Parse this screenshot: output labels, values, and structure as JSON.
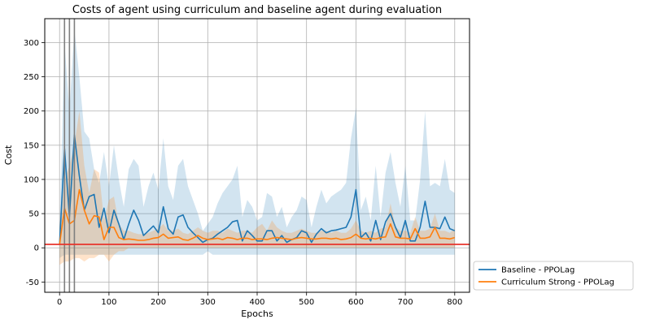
{
  "chart_data": {
    "type": "line",
    "title": "Costs of agent using curriculum and baseline agent during evaluation",
    "xlabel": "Epochs",
    "ylabel": "Cost",
    "xlim": [
      -30,
      830
    ],
    "ylim": [
      -65,
      335
    ],
    "xticks": [
      0,
      100,
      200,
      300,
      400,
      500,
      600,
      700,
      800
    ],
    "yticks": [
      -50,
      0,
      50,
      100,
      150,
      200,
      250,
      300
    ],
    "grid": true,
    "legend_position": "outside-bottom-right",
    "threshold": {
      "y": 5,
      "color": "#e8352b"
    },
    "vertical_lines": {
      "x": [
        10,
        20,
        30
      ],
      "color": "#7f7f7f"
    },
    "x": [
      0,
      10,
      20,
      30,
      40,
      50,
      60,
      70,
      80,
      90,
      100,
      110,
      120,
      130,
      140,
      150,
      160,
      170,
      180,
      190,
      200,
      210,
      220,
      230,
      240,
      250,
      260,
      270,
      280,
      290,
      300,
      310,
      320,
      330,
      340,
      350,
      360,
      370,
      380,
      390,
      400,
      410,
      420,
      430,
      440,
      450,
      460,
      470,
      480,
      490,
      500,
      510,
      520,
      530,
      540,
      550,
      560,
      570,
      580,
      590,
      600,
      610,
      620,
      630,
      640,
      650,
      660,
      670,
      680,
      690,
      700,
      710,
      720,
      730,
      740,
      750,
      760,
      770,
      780,
      790,
      800
    ],
    "series": [
      {
        "name": "Baseline - PPOLag",
        "color": "#1f77b4",
        "values": [
          5,
          145,
          45,
          165,
          105,
          55,
          75,
          78,
          30,
          58,
          22,
          55,
          35,
          12,
          35,
          55,
          40,
          18,
          25,
          32,
          22,
          60,
          28,
          20,
          45,
          48,
          30,
          22,
          15,
          8,
          12,
          14,
          20,
          25,
          30,
          38,
          40,
          10,
          25,
          18,
          10,
          10,
          25,
          25,
          10,
          18,
          8,
          12,
          15,
          25,
          22,
          8,
          20,
          28,
          22,
          25,
          26,
          28,
          30,
          45,
          85,
          15,
          22,
          10,
          40,
          12,
          38,
          50,
          30,
          15,
          40,
          10,
          10,
          30,
          68,
          30,
          30,
          28,
          45,
          28,
          25
        ],
        "band_low": [
          -15,
          -10,
          -10,
          -10,
          -10,
          -10,
          -10,
          -10,
          -10,
          -10,
          -10,
          -10,
          -10,
          -10,
          -10,
          -10,
          -10,
          -10,
          -10,
          -10,
          -10,
          -10,
          -10,
          -10,
          -10,
          -10,
          -10,
          -10,
          -10,
          -10,
          -5,
          -10,
          -10,
          -10,
          -10,
          -10,
          -10,
          -10,
          -10,
          -10,
          -10,
          -10,
          -10,
          -10,
          -10,
          -10,
          -10,
          -10,
          -10,
          -10,
          -10,
          -10,
          -10,
          -10,
          -10,
          -10,
          -10,
          -10,
          -10,
          -10,
          -10,
          -10,
          -10,
          -10,
          -10,
          -10,
          -10,
          -10,
          -10,
          -10,
          -10,
          -10,
          -10,
          -10,
          -10,
          -10,
          -10,
          -10,
          -10,
          -10,
          -10
        ],
        "band_high": [
          30,
          300,
          200,
          320,
          250,
          170,
          160,
          115,
          95,
          140,
          90,
          150,
          100,
          60,
          115,
          130,
          120,
          60,
          90,
          110,
          85,
          160,
          90,
          70,
          120,
          130,
          90,
          70,
          50,
          25,
          35,
          45,
          65,
          80,
          90,
          100,
          120,
          45,
          70,
          60,
          40,
          45,
          80,
          75,
          45,
          60,
          30,
          45,
          55,
          75,
          70,
          30,
          60,
          85,
          65,
          75,
          80,
          85,
          95,
          160,
          205,
          55,
          75,
          40,
          120,
          45,
          110,
          140,
          95,
          60,
          120,
          40,
          40,
          100,
          200,
          90,
          95,
          90,
          130,
          85,
          80
        ]
      },
      {
        "name": "Curriculum Strong - PPOLag",
        "color": "#ff7f0e",
        "values": [
          5,
          58,
          35,
          40,
          85,
          55,
          35,
          47,
          45,
          12,
          30,
          30,
          15,
          12,
          13,
          12,
          11,
          11,
          12,
          14,
          15,
          20,
          14,
          15,
          16,
          12,
          11,
          14,
          18,
          14,
          12,
          13,
          14,
          12,
          15,
          14,
          12,
          14,
          14,
          12,
          13,
          13,
          12,
          14,
          15,
          14,
          13,
          12,
          14,
          15,
          14,
          13,
          13,
          14,
          14,
          13,
          14,
          12,
          13,
          15,
          20,
          14,
          13,
          14,
          13,
          15,
          16,
          35,
          16,
          14,
          14,
          13,
          28,
          14,
          14,
          16,
          30,
          14,
          14,
          13,
          15
        ],
        "band_low": [
          -25,
          -20,
          -20,
          -15,
          -15,
          -20,
          -15,
          -15,
          -10,
          -10,
          -20,
          -10,
          -5,
          -5,
          0,
          0,
          0,
          0,
          0,
          0,
          0,
          0,
          0,
          0,
          0,
          0,
          0,
          0,
          0,
          0,
          0,
          0,
          0,
          0,
          0,
          0,
          0,
          0,
          0,
          0,
          0,
          0,
          0,
          0,
          0,
          0,
          0,
          0,
          0,
          0,
          0,
          0,
          0,
          0,
          0,
          0,
          0,
          0,
          0,
          0,
          0,
          0,
          0,
          0,
          0,
          0,
          0,
          0,
          0,
          0,
          0,
          0,
          0,
          0,
          0,
          0,
          0,
          0,
          0,
          0,
          0
        ],
        "band_high": [
          30,
          100,
          120,
          150,
          200,
          120,
          80,
          115,
          110,
          40,
          70,
          75,
          35,
          25,
          25,
          22,
          20,
          20,
          22,
          25,
          28,
          35,
          25,
          25,
          28,
          22,
          20,
          25,
          30,
          25,
          22,
          25,
          25,
          22,
          28,
          25,
          22,
          25,
          25,
          22,
          30,
          35,
          25,
          40,
          30,
          25,
          22,
          22,
          25,
          28,
          25,
          22,
          22,
          25,
          25,
          22,
          25,
          22,
          22,
          28,
          40,
          25,
          22,
          25,
          22,
          28,
          30,
          65,
          30,
          25,
          25,
          22,
          45,
          25,
          25,
          28,
          50,
          25,
          25,
          22,
          28
        ]
      }
    ]
  }
}
